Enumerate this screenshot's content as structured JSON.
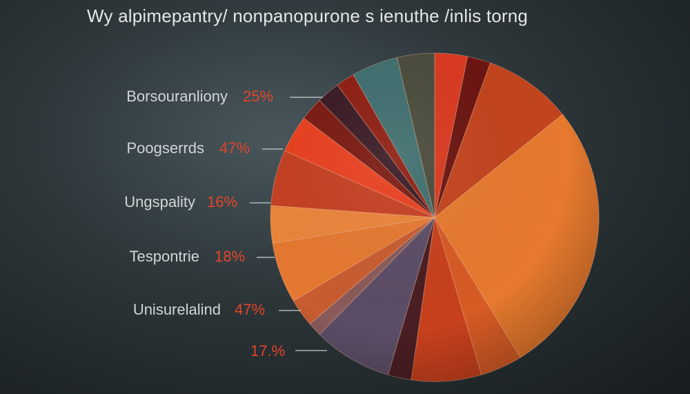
{
  "chart_data": {
    "type": "pie",
    "title": "Wy alpimepantry/ nonpanopurone s ienuthe /inlis torng",
    "legend_position": "left",
    "annotations": [
      {
        "label": "Borsouranliony",
        "value": "25%"
      },
      {
        "label": "Poogserrds",
        "value": "47%"
      },
      {
        "label": "Ungspality",
        "value": "16%"
      },
      {
        "label": "Tespontrie",
        "value": "18%"
      },
      {
        "label": "Unisurelalind",
        "value": "47%"
      },
      {
        "label": "",
        "value": "17.%"
      }
    ],
    "slices": [
      {
        "value": 3.5,
        "color": "#d9391f"
      },
      {
        "value": 2.5,
        "color": "#6b1410"
      },
      {
        "value": 9.5,
        "color": "#c2441d"
      },
      {
        "value": 29.5,
        "color": "#e6792e"
      },
      {
        "value": 4.5,
        "color": "#d65b25"
      },
      {
        "value": 7.5,
        "color": "#c8411d"
      },
      {
        "value": 2.5,
        "color": "#4a1e22"
      },
      {
        "value": 8.5,
        "color": "#5c4d66"
      },
      {
        "value": 1.5,
        "color": "#8a5a5a"
      },
      {
        "value": 3.0,
        "color": "#c95c30"
      },
      {
        "value": 6.5,
        "color": "#e57830"
      },
      {
        "value": 4.0,
        "color": "#eb843a"
      },
      {
        "value": 6.0,
        "color": "#c54022"
      },
      {
        "value": 4.0,
        "color": "#e8401f"
      },
      {
        "value": 2.5,
        "color": "#7a1a12"
      },
      {
        "value": 2.5,
        "color": "#3a1a24"
      },
      {
        "value": 2.0,
        "color": "#8e1e12"
      },
      {
        "value": 5.0,
        "color": "#3f6e6e"
      },
      {
        "value": 4.0,
        "color": "#4a4b3b"
      }
    ]
  }
}
